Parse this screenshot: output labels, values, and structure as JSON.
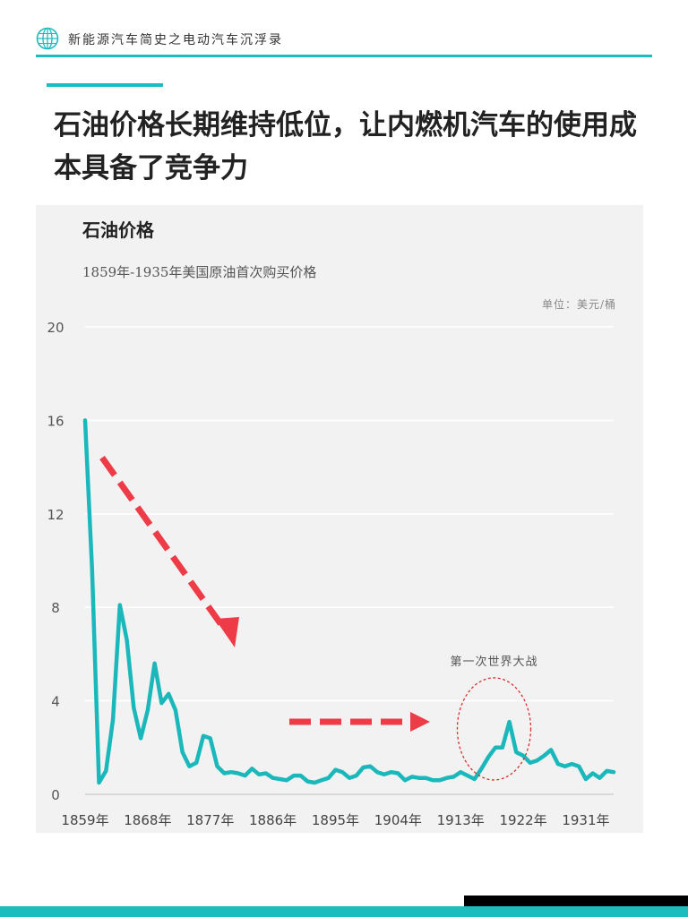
{
  "header": {
    "series_title": "新能源汽车简史之电动汽车沉浮录",
    "logo_icon": "globe-icon"
  },
  "page": {
    "title": "石油价格长期维持低位，让内燃机汽车的使用成本具备了竞争力"
  },
  "colors": {
    "accent": "#1bbdbf",
    "line": "#1ab8bb",
    "arrow": "#ee3b48",
    "annotation_ellipse": "#d9302c",
    "panel": "#f2f2f2"
  },
  "chart_data": {
    "type": "line",
    "title": "石油价格",
    "subtitle": "1859年-1935年美国原油首次购买价格",
    "unit": "单位：美元/桶",
    "xlabel": "",
    "ylabel": "",
    "x_start": 1859,
    "x_end": 1935,
    "ylim": [
      0,
      20
    ],
    "yticks": [
      "0",
      "4",
      "8",
      "12",
      "16",
      "20"
    ],
    "xticks": [
      "1859年",
      "1868年",
      "1877年",
      "1886年",
      "1895年",
      "1904年",
      "1913年",
      "1922年",
      "1931年"
    ],
    "grid": true,
    "series": [
      {
        "x": [
          1859,
          1860,
          1861,
          1862,
          1863,
          1864,
          1865,
          1866,
          1867,
          1868,
          1869,
          1870,
          1871,
          1872,
          1873,
          1874,
          1875,
          1876,
          1877,
          1878,
          1879,
          1880,
          1881,
          1882,
          1883,
          1884,
          1885,
          1886,
          1887,
          1888,
          1889,
          1890,
          1891,
          1892,
          1893,
          1894,
          1895,
          1896,
          1897,
          1898,
          1899,
          1900,
          1901,
          1902,
          1903,
          1904,
          1905,
          1906,
          1907,
          1908,
          1909,
          1910,
          1911,
          1912,
          1913,
          1914,
          1915,
          1916,
          1917,
          1918,
          1919,
          1920,
          1921,
          1922,
          1923,
          1924,
          1925,
          1926,
          1927,
          1928,
          1929,
          1930,
          1931,
          1932,
          1933,
          1934,
          1935
        ],
        "values": [
          16.0,
          9.6,
          0.5,
          1.0,
          3.2,
          8.1,
          6.6,
          3.7,
          2.4,
          3.6,
          5.6,
          3.9,
          4.3,
          3.6,
          1.8,
          1.2,
          1.35,
          2.5,
          2.4,
          1.2,
          0.9,
          0.95,
          0.9,
          0.8,
          1.1,
          0.85,
          0.9,
          0.7,
          0.65,
          0.6,
          0.8,
          0.8,
          0.55,
          0.5,
          0.6,
          0.7,
          1.05,
          0.95,
          0.7,
          0.8,
          1.15,
          1.2,
          0.95,
          0.85,
          0.95,
          0.9,
          0.6,
          0.75,
          0.7,
          0.7,
          0.6,
          0.6,
          0.7,
          0.75,
          0.95,
          0.8,
          0.65,
          1.1,
          1.6,
          2.0,
          2.0,
          3.1,
          1.8,
          1.65,
          1.35,
          1.45,
          1.65,
          1.9,
          1.3,
          1.2,
          1.3,
          1.2,
          0.65,
          0.9,
          0.7,
          1.0,
          0.95
        ]
      }
    ],
    "annotation": "第一次世界大战"
  }
}
